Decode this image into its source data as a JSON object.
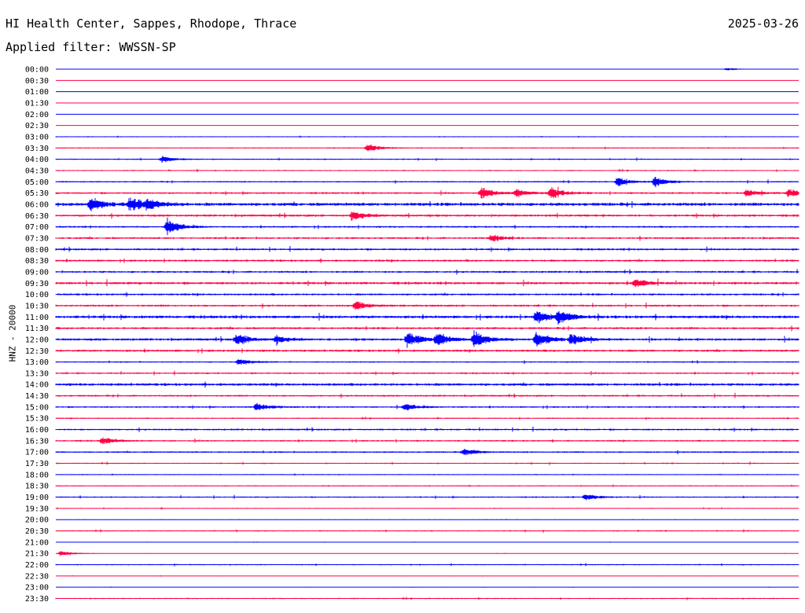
{
  "header": {
    "station": "HI Health Center, Sappes, Rhodope, Thrace",
    "date": "2025-03-26",
    "filter": "Applied filter: WWSSN-SP"
  },
  "channel_label": "HNZ - 20000",
  "chart_data": {
    "type": "line",
    "subtype": "helicorder",
    "title": "HI Health Center, Sappes, Rhodope, Thrace",
    "date": "2025-03-26",
    "filter": "WWSSN-SP",
    "ylabel": "HNZ - 20000",
    "traces_per_hour": 2,
    "trace_minutes": 30,
    "color_cycle": [
      "#0000ff",
      "#ff0044"
    ],
    "row_labels": [
      "00:00",
      "00:30",
      "01:00",
      "01:30",
      "02:00",
      "02:30",
      "03:00",
      "03:30",
      "04:00",
      "04:30",
      "05:00",
      "05:30",
      "06:00",
      "06:30",
      "07:00",
      "07:30",
      "08:00",
      "08:30",
      "09:00",
      "09:30",
      "10:00",
      "10:30",
      "11:00",
      "11:30",
      "12:00",
      "12:30",
      "13:00",
      "13:30",
      "14:00",
      "14:30",
      "15:00",
      "15:30",
      "16:00",
      "16:30",
      "17:00",
      "17:30",
      "18:00",
      "18:30",
      "19:00",
      "19:30",
      "20:00",
      "20:30",
      "21:00",
      "21:30",
      "22:00",
      "22:30",
      "23:00",
      "23:30"
    ],
    "noise_level": [
      0.1,
      0.05,
      0.05,
      0.05,
      0.05,
      0.05,
      0.5,
      0.5,
      0.6,
      0.6,
      0.7,
      0.9,
      1.6,
      1.1,
      0.9,
      1.0,
      1.0,
      1.0,
      1.0,
      1.2,
      1.0,
      1.0,
      1.4,
      1.1,
      1.2,
      1.1,
      0.7,
      0.8,
      1.3,
      0.9,
      0.8,
      0.6,
      0.9,
      0.8,
      0.8,
      0.6,
      0.5,
      0.5,
      0.7,
      0.4,
      0.3,
      0.6,
      0.2,
      0.2,
      0.6,
      0.2,
      0.2,
      0.6
    ],
    "events": [
      {
        "trace": "00:00",
        "minute": 27.1,
        "amplitude": 2
      },
      {
        "trace": "03:30",
        "minute": 12.6,
        "amplitude": 5
      },
      {
        "trace": "04:00",
        "minute": 4.3,
        "amplitude": 4
      },
      {
        "trace": "05:00",
        "minute": 22.7,
        "amplitude": 6
      },
      {
        "trace": "05:00",
        "minute": 24.2,
        "amplitude": 6
      },
      {
        "trace": "05:30",
        "minute": 17.2,
        "amplitude": 7
      },
      {
        "trace": "05:30",
        "minute": 18.6,
        "amplitude": 5
      },
      {
        "trace": "05:30",
        "minute": 20.0,
        "amplitude": 7
      },
      {
        "trace": "05:30",
        "minute": 27.9,
        "amplitude": 4
      },
      {
        "trace": "05:30",
        "minute": 29.6,
        "amplitude": 5
      },
      {
        "trace": "06:00",
        "minute": 1.4,
        "amplitude": 8
      },
      {
        "trace": "06:00",
        "minute": 3.0,
        "amplitude": 8
      },
      {
        "trace": "06:00",
        "minute": 3.7,
        "amplitude": 5
      },
      {
        "trace": "06:30",
        "minute": 12.0,
        "amplitude": 6
      },
      {
        "trace": "07:00",
        "minute": 4.5,
        "amplitude": 9
      },
      {
        "trace": "07:30",
        "minute": 17.6,
        "amplitude": 4
      },
      {
        "trace": "09:30",
        "minute": 23.4,
        "amplitude": 5
      },
      {
        "trace": "10:30",
        "minute": 12.1,
        "amplitude": 5
      },
      {
        "trace": "11:00",
        "minute": 19.4,
        "amplitude": 7
      },
      {
        "trace": "11:00",
        "minute": 20.3,
        "amplitude": 8
      },
      {
        "trace": "12:00",
        "minute": 7.3,
        "amplitude": 7
      },
      {
        "trace": "12:00",
        "minute": 8.9,
        "amplitude": 5
      },
      {
        "trace": "12:00",
        "minute": 14.2,
        "amplitude": 10
      },
      {
        "trace": "12:00",
        "minute": 15.4,
        "amplitude": 8
      },
      {
        "trace": "12:00",
        "minute": 16.9,
        "amplitude": 10
      },
      {
        "trace": "12:00",
        "minute": 19.4,
        "amplitude": 10
      },
      {
        "trace": "12:00",
        "minute": 20.8,
        "amplitude": 7
      },
      {
        "trace": "13:00",
        "minute": 7.4,
        "amplitude": 4
      },
      {
        "trace": "15:00",
        "minute": 8.1,
        "amplitude": 5
      },
      {
        "trace": "15:00",
        "minute": 14.1,
        "amplitude": 4
      },
      {
        "trace": "16:30",
        "minute": 1.9,
        "amplitude": 4
      },
      {
        "trace": "17:00",
        "minute": 16.5,
        "amplitude": 4
      },
      {
        "trace": "19:00",
        "minute": 21.4,
        "amplitude": 4
      },
      {
        "trace": "21:30",
        "minute": 0.2,
        "amplitude": 4
      }
    ]
  }
}
